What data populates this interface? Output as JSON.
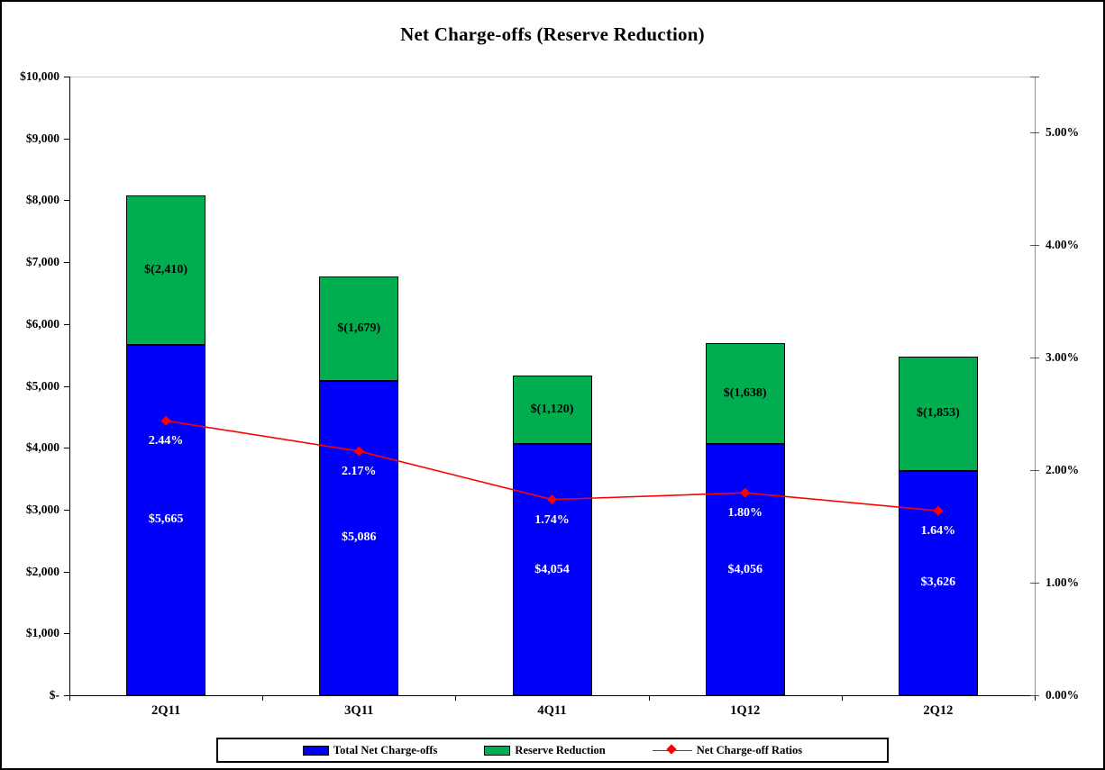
{
  "title": "Net Charge-offs (Reserve Reduction)",
  "colors": {
    "bar_blue": "#0000F8",
    "bar_green": "#00AE50",
    "line_red": "#FF0000",
    "axis_black": "#000000",
    "right_axis_gray": "#909090",
    "gridline_gray": "#C9C9C9",
    "label_white": "#FFFFFF",
    "label_black": "#000000"
  },
  "chart_data": {
    "type": "bar",
    "subtype": "stacked-bars-with-line-overlay-dual-axis",
    "title": "Net Charge-offs (Reserve Reduction)",
    "categories": [
      "2Q11",
      "3Q11",
      "4Q11",
      "1Q12",
      "2Q12"
    ],
    "series": [
      {
        "name": "Total Net Charge-offs",
        "type": "bar",
        "axis": "left",
        "values": [
          5665,
          5086,
          4054,
          4056,
          3626
        ],
        "labels": [
          "$5,665",
          "$5,086",
          "$4,054",
          "$4,056",
          "$3,626"
        ]
      },
      {
        "name": "Reserve Reduction",
        "type": "bar",
        "axis": "left",
        "values": [
          2410,
          1679,
          1120,
          1638,
          1853
        ],
        "labels": [
          "$(2,410)",
          "$(1,679)",
          "$(1,120)",
          "$(1,638)",
          "$(1,853)"
        ]
      },
      {
        "name": "Net Charge-off Ratios",
        "type": "line",
        "axis": "right",
        "values": [
          2.44,
          2.17,
          1.74,
          1.8,
          1.64
        ],
        "labels": [
          "2.44%",
          "2.17%",
          "1.74%",
          "1.80%",
          "1.64%"
        ]
      }
    ],
    "left_axis": {
      "min": 0,
      "max": 10000,
      "step": 1000,
      "tick_labels": [
        "$-",
        "$1,000",
        "$2,000",
        "$3,000",
        "$4,000",
        "$5,000",
        "$6,000",
        "$7,000",
        "$8,000",
        "$9,000",
        "$10,000"
      ]
    },
    "right_axis": {
      "min": 0,
      "max": 5.5,
      "step": 1,
      "tick_labels": [
        "0.00%",
        "1.00%",
        "2.00%",
        "3.00%",
        "4.00%",
        "5.00%"
      ]
    },
    "legend_position": "bottom",
    "grid": "top horizontal gridline only"
  },
  "legend": {
    "items": [
      {
        "label": "Total Net Charge-offs",
        "swatch": "blue-rect"
      },
      {
        "label": "Reserve Reduction",
        "swatch": "green-rect"
      },
      {
        "label": "Net Charge-off Ratios",
        "swatch": "red-line-diamond"
      }
    ]
  }
}
